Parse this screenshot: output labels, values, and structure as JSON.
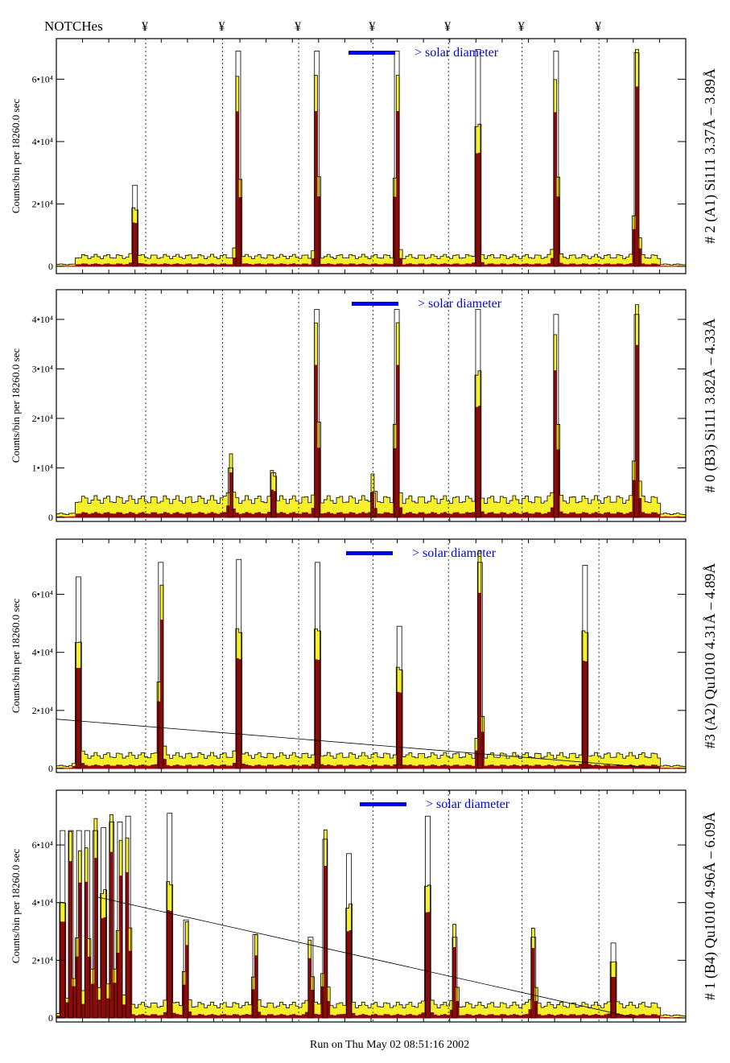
{
  "header": {
    "notches_label": "NOTCHes",
    "notch_symbol": "¥"
  },
  "footer": {
    "run_text": "Run on Thu May 02 08:51:16 2002"
  },
  "colors": {
    "fill_total": "#f5f02a",
    "fill_peak": "#8b0a0a",
    "outline": "#000000",
    "annotation": "#0000ee"
  },
  "chart_data": [
    {
      "type": "bar",
      "title": "# 2 (A1) Si111  3.37Å – 3.89Å",
      "ylabel": "Counts/bin per  18260.0 sec",
      "legend": "> solar diameter",
      "xlim": [
        0,
        100
      ],
      "ylim": [
        0,
        73000
      ],
      "yticks": [
        {
          "v": 0,
          "label": "0"
        },
        {
          "v": 20000,
          "label": "2•10⁴"
        },
        {
          "v": 40000,
          "label": "4•10⁴"
        },
        {
          "v": 60000,
          "label": "6•10⁴"
        }
      ],
      "background": 3500,
      "peaks": [
        {
          "x": 12.5,
          "y": 26000
        },
        {
          "x": 28.9,
          "y": 69000
        },
        {
          "x": 41.4,
          "y": 69000
        },
        {
          "x": 54.1,
          "y": 69000
        },
        {
          "x": 67.0,
          "y": 69500
        },
        {
          "x": 79.4,
          "y": 69000
        },
        {
          "x": 92.2,
          "y": 68500
        }
      ],
      "fit_line": null
    },
    {
      "type": "bar",
      "title": "# 0 (B3) Si111  3.82Å – 4.33Å",
      "ylabel": "Counts/bin per  18260.0 sec",
      "legend": "> solar diameter",
      "xlim": [
        0,
        100
      ],
      "ylim": [
        0,
        46000
      ],
      "yticks": [
        {
          "v": 0,
          "label": "0"
        },
        {
          "v": 10000,
          "label": "1•10⁴"
        },
        {
          "v": 20000,
          "label": "2•10⁴"
        },
        {
          "v": 30000,
          "label": "3•10⁴"
        },
        {
          "v": 40000,
          "label": "4•10⁴"
        }
      ],
      "background": 4000,
      "peaks": [
        {
          "x": 27.7,
          "y": 10000
        },
        {
          "x": 34.5,
          "y": 9000
        },
        {
          "x": 41.4,
          "y": 42000
        },
        {
          "x": 50.3,
          "y": 5000
        },
        {
          "x": 54.1,
          "y": 42000
        },
        {
          "x": 67.0,
          "y": 42000
        },
        {
          "x": 79.4,
          "y": 41000
        },
        {
          "x": 92.2,
          "y": 41000
        }
      ],
      "fit_line": null
    },
    {
      "type": "bar",
      "title": "#3 (A2) Qu1010  4.31Å – 4.89Å",
      "ylabel": "Counts/bin per  18260.0 sec",
      "legend": "> solar diameter",
      "xlim": [
        0,
        100
      ],
      "ylim": [
        0,
        79000
      ],
      "yticks": [
        {
          "v": 0,
          "label": "0"
        },
        {
          "v": 20000,
          "label": "2•10⁴"
        },
        {
          "v": 40000,
          "label": "4•10⁴"
        },
        {
          "v": 60000,
          "label": "6•10⁴"
        }
      ],
      "background": 5000,
      "peaks": [
        {
          "x": 3.5,
          "y": 66000
        },
        {
          "x": 16.6,
          "y": 71000
        },
        {
          "x": 29.0,
          "y": 72000
        },
        {
          "x": 41.5,
          "y": 71000
        },
        {
          "x": 54.5,
          "y": 49000
        },
        {
          "x": 67.3,
          "y": 71000
        },
        {
          "x": 84.0,
          "y": 70000
        }
      ],
      "fit_line": [
        [
          0,
          17000
        ],
        [
          96,
          0
        ]
      ]
    },
    {
      "type": "bar",
      "title": "# 1 (B4) Qu1010 4.96Å – 6.09Å",
      "ylabel": "Counts/bin per  18260.0 sec",
      "legend": "> solar diameter",
      "xlim": [
        0,
        100
      ],
      "ylim": [
        0,
        79000
      ],
      "yticks": [
        {
          "v": 0,
          "label": "0"
        },
        {
          "v": 20000,
          "label": "2•10⁴"
        },
        {
          "v": 40000,
          "label": "4•10⁴"
        },
        {
          "v": 60000,
          "label": "6•10⁴"
        }
      ],
      "background": 5000,
      "peaks": [
        {
          "x": 1,
          "y": 65000
        },
        {
          "x": 2.3,
          "y": 65000
        },
        {
          "x": 3.6,
          "y": 65000
        },
        {
          "x": 4.9,
          "y": 65000
        },
        {
          "x": 6.2,
          "y": 65000
        },
        {
          "x": 7.5,
          "y": 66000
        },
        {
          "x": 8.8,
          "y": 68000
        },
        {
          "x": 10.1,
          "y": 68000
        },
        {
          "x": 11.4,
          "y": 70000
        },
        {
          "x": 18.0,
          "y": 71000
        },
        {
          "x": 20.6,
          "y": 34000
        },
        {
          "x": 31.6,
          "y": 29000
        },
        {
          "x": 40.4,
          "y": 28000
        },
        {
          "x": 42.7,
          "y": 62000
        },
        {
          "x": 46.5,
          "y": 57000
        },
        {
          "x": 59.0,
          "y": 70000
        },
        {
          "x": 63.3,
          "y": 28000
        },
        {
          "x": 75.8,
          "y": 28000
        },
        {
          "x": 88.5,
          "y": 26000
        }
      ],
      "fit_line": [
        [
          6.4,
          42000
        ],
        [
          92,
          0
        ]
      ]
    }
  ],
  "notch_positions": [
    14.2,
    26.4,
    38.5,
    50.3,
    62.3,
    74.0,
    86.2
  ]
}
